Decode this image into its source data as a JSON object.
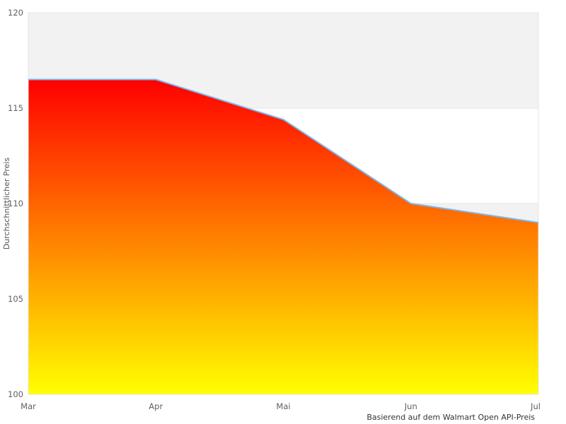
{
  "chart_data": {
    "type": "area",
    "title": "",
    "categories": [
      "Mar",
      "Apr",
      "Mai",
      "Jun",
      "Jul"
    ],
    "series": [
      {
        "name": "Durchschnittlicher Preis",
        "values": [
          116.5,
          116.5,
          114.4,
          110.0,
          109.0
        ]
      }
    ],
    "xlabel": "",
    "ylabel": "Durchschnittlicher Preis",
    "ylim": [
      100,
      120
    ],
    "yticks": [
      100,
      105,
      110,
      115,
      120
    ],
    "caption": "Basierend auf dem Walmart Open API-Preis",
    "legend": false,
    "grid": "horizontal gridlines with alternating band fill (gray topmost band)",
    "colors": {
      "line": "#7cb5ec",
      "area_gradient_top": "#ff0000",
      "area_gradient_bottom": "#ffff00",
      "band_gray": "#f2f2f2",
      "gridline": "#e6e6e6",
      "tick_label": "#606060",
      "axis_title": "#555555",
      "caption": "#333333",
      "background": "#ffffff"
    }
  }
}
